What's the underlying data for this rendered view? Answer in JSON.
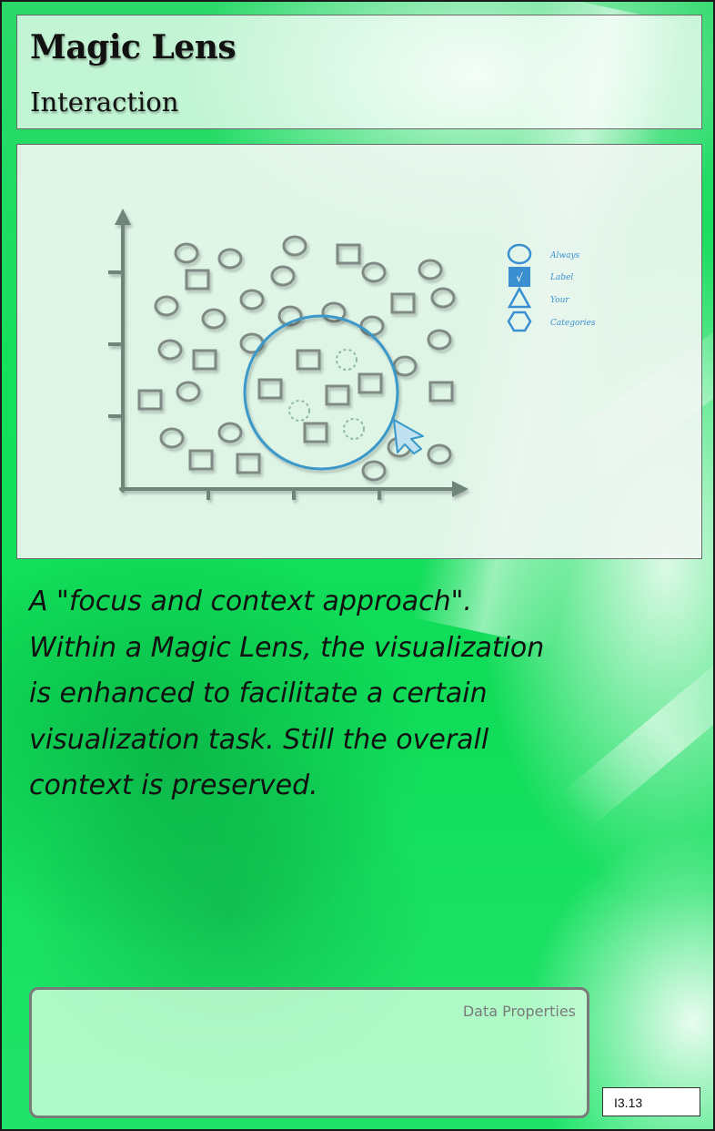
{
  "card": {
    "title": "Magic Lens",
    "subtitle": "Interaction",
    "description_lines": [
      "A \"focus and context approach\".",
      "Within a Magic Lens,  the visualization",
      "is enhanced to facilitate a certain",
      "visualization task. Still the overall",
      "context is preserved."
    ],
    "data_properties_label": "Data Properties",
    "card_id": "I3.13"
  },
  "illustration": {
    "legend": [
      {
        "shape": "circle",
        "label": "Always"
      },
      {
        "shape": "check-square",
        "label": "Label",
        "glyph": "√"
      },
      {
        "shape": "triangle",
        "label": "Your"
      },
      {
        "shape": "hexagon",
        "label": "Categories"
      }
    ],
    "colors": {
      "marker_stroke": "#808a84",
      "lens": "#3a98c8",
      "legend": "#3a8fd0",
      "axis": "#6f857a",
      "background": "#14e05c"
    }
  }
}
